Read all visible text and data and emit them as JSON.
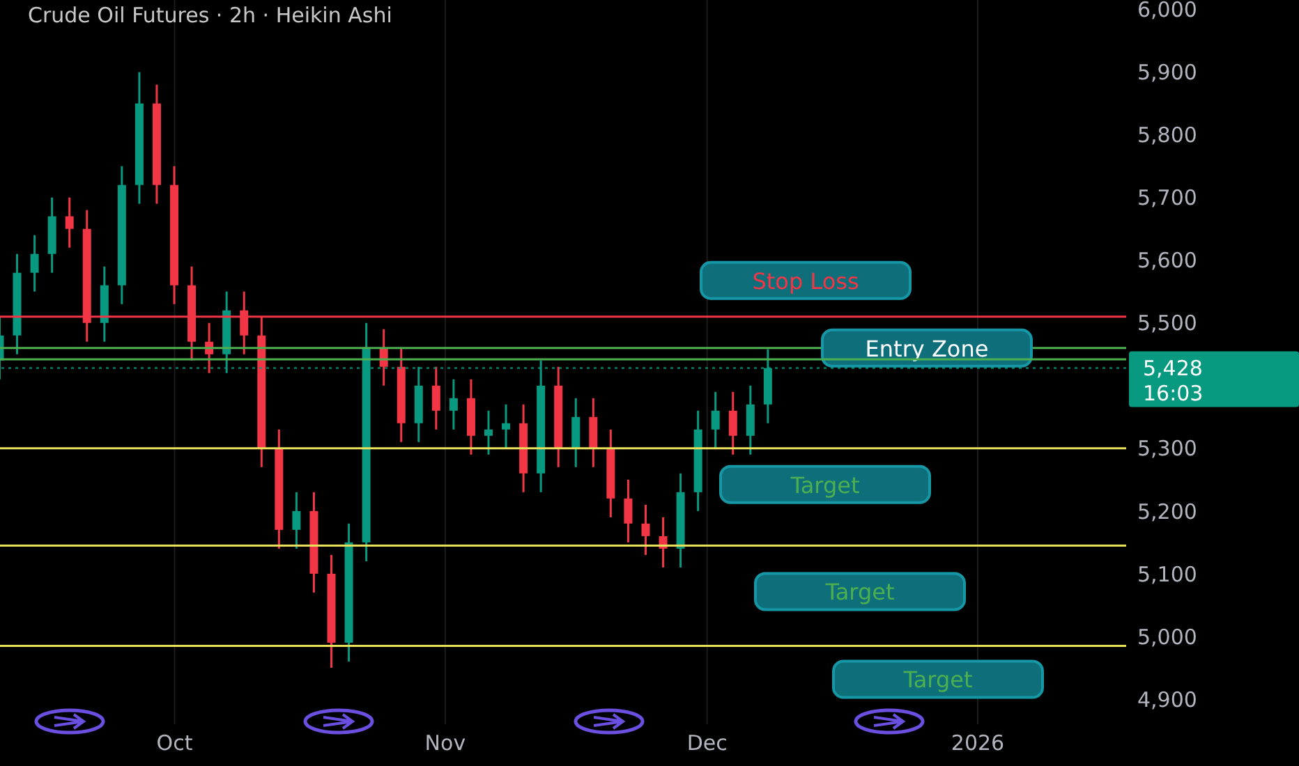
{
  "chart_data": {
    "type": "candlestick",
    "title": "Crude Oil Futures · 2h · Heikin Ashi",
    "x": [
      "2025-09-11",
      "2025-09-13",
      "2025-09-15",
      "2025-09-17",
      "2025-09-19",
      "2025-09-21",
      "2025-09-23",
      "2025-09-25",
      "2025-09-27",
      "2025-09-29",
      "2025-10-01",
      "2025-10-03",
      "2025-10-05",
      "2025-10-07",
      "2025-10-09",
      "2025-10-11",
      "2025-10-13",
      "2025-10-15",
      "2025-10-17",
      "2025-10-19",
      "2025-10-21",
      "2025-10-23",
      "2025-10-25",
      "2025-10-27",
      "2025-10-29",
      "2025-10-31",
      "2025-11-02",
      "2025-11-04",
      "2025-11-06",
      "2025-11-08",
      "2025-11-10",
      "2025-11-12",
      "2025-11-14",
      "2025-11-16",
      "2025-11-18",
      "2025-11-20",
      "2025-11-22",
      "2025-11-24",
      "2025-11-26",
      "2025-11-28",
      "2025-11-30",
      "2025-12-02",
      "2025-12-04",
      "2025-12-06",
      "2025-12-08"
    ],
    "ohlc": [
      [
        5440,
        5510,
        5410,
        5480
      ],
      [
        5480,
        5610,
        5450,
        5580
      ],
      [
        5580,
        5640,
        5550,
        5610
      ],
      [
        5610,
        5700,
        5580,
        5670
      ],
      [
        5670,
        5700,
        5620,
        5650
      ],
      [
        5650,
        5680,
        5470,
        5500
      ],
      [
        5500,
        5590,
        5470,
        5560
      ],
      [
        5560,
        5750,
        5530,
        5720
      ],
      [
        5720,
        5900,
        5690,
        5850
      ],
      [
        5850,
        5880,
        5690,
        5720
      ],
      [
        5720,
        5750,
        5530,
        5560
      ],
      [
        5560,
        5590,
        5440,
        5470
      ],
      [
        5470,
        5500,
        5420,
        5450
      ],
      [
        5450,
        5550,
        5420,
        5520
      ],
      [
        5520,
        5550,
        5450,
        5480
      ],
      [
        5480,
        5510,
        5270,
        5300
      ],
      [
        5300,
        5330,
        5140,
        5170
      ],
      [
        5170,
        5230,
        5140,
        5200
      ],
      [
        5200,
        5230,
        5070,
        5100
      ],
      [
        5100,
        5130,
        4950,
        4990
      ],
      [
        4990,
        5180,
        4960,
        5150
      ],
      [
        5150,
        5500,
        5120,
        5460
      ],
      [
        5460,
        5490,
        5400,
        5430
      ],
      [
        5430,
        5460,
        5310,
        5340
      ],
      [
        5340,
        5430,
        5310,
        5400
      ],
      [
        5400,
        5430,
        5330,
        5360
      ],
      [
        5360,
        5410,
        5330,
        5380
      ],
      [
        5380,
        5410,
        5290,
        5320
      ],
      [
        5320,
        5360,
        5290,
        5330
      ],
      [
        5330,
        5370,
        5300,
        5340
      ],
      [
        5340,
        5370,
        5230,
        5260
      ],
      [
        5260,
        5440,
        5230,
        5400
      ],
      [
        5400,
        5430,
        5270,
        5300
      ],
      [
        5300,
        5380,
        5270,
        5350
      ],
      [
        5350,
        5380,
        5270,
        5300
      ],
      [
        5300,
        5330,
        5190,
        5220
      ],
      [
        5220,
        5250,
        5150,
        5180
      ],
      [
        5180,
        5210,
        5130,
        5160
      ],
      [
        5160,
        5190,
        5110,
        5140
      ],
      [
        5140,
        5260,
        5110,
        5230
      ],
      [
        5230,
        5360,
        5200,
        5330
      ],
      [
        5330,
        5390,
        5300,
        5360
      ],
      [
        5360,
        5390,
        5290,
        5320
      ],
      [
        5320,
        5400,
        5290,
        5370
      ],
      [
        5370,
        5458,
        5340,
        5428
      ]
    ],
    "colors": [
      "#089981",
      "#089981",
      "#089981",
      "#089981",
      "#f23645",
      "#f23645",
      "#089981",
      "#089981",
      "#089981",
      "#f23645",
      "#f23645",
      "#f23645",
      "#f23645",
      "#089981",
      "#f23645",
      "#f23645",
      "#f23645",
      "#089981",
      "#f23645",
      "#f23645",
      "#089981",
      "#089981",
      "#f23645",
      "#f23645",
      "#089981",
      "#f23645",
      "#089981",
      "#f23645",
      "#089981",
      "#089981",
      "#f23645",
      "#089981",
      "#f23645",
      "#089981",
      "#f23645",
      "#f23645",
      "#f23645",
      "#f23645",
      "#f23645",
      "#089981",
      "#089981",
      "#089981",
      "#f23645",
      "#089981",
      "#089981"
    ],
    "xlim": [
      "2025-09-11",
      "2026-01-18"
    ],
    "xticks": [
      {
        "value": "2025-10-01",
        "label": "Oct"
      },
      {
        "value": "2025-11-01",
        "label": "Nov"
      },
      {
        "value": "2025-12-01",
        "label": "Dec"
      },
      {
        "value": "2026-01-01",
        "label": "2026"
      }
    ],
    "ylim": [
      4860,
      6015
    ],
    "yticks": [
      {
        "value": 4900,
        "label": "4,900"
      },
      {
        "value": 5000,
        "label": "5,000"
      },
      {
        "value": 5100,
        "label": "5,100"
      },
      {
        "value": 5200,
        "label": "5,200"
      },
      {
        "value": 5300,
        "label": "5,300"
      },
      {
        "value": 5500,
        "label": "5,500"
      },
      {
        "value": 5600,
        "label": "5,600"
      },
      {
        "value": 5700,
        "label": "5,700"
      },
      {
        "value": 5800,
        "label": "5,800"
      },
      {
        "value": 5900,
        "label": "5,900"
      },
      {
        "value": 6000,
        "label": "6,000"
      }
    ],
    "ref_lines": [
      {
        "axis": "y",
        "value": 5510,
        "label": "Stop Loss",
        "color": "#f23645"
      },
      {
        "axis": "y",
        "value": 5460,
        "label": "Entry Zone",
        "color": "#4caf50"
      },
      {
        "axis": "y",
        "value": 5442,
        "label": null,
        "color": "#4caf50"
      },
      {
        "axis": "y",
        "value": 5300,
        "label": "Target",
        "color": "#e8e05a"
      },
      {
        "axis": "y",
        "value": 5145,
        "label": "Target",
        "color": "#e8e05a"
      },
      {
        "axis": "y",
        "value": 4985,
        "label": "Target",
        "color": "#e8e05a"
      },
      {
        "axis": "y",
        "value": 5428,
        "label": "5,428",
        "color": "#089981",
        "line_style": "dotted"
      }
    ],
    "annotations": [
      "16:03"
    ],
    "grid": true
  }
}
